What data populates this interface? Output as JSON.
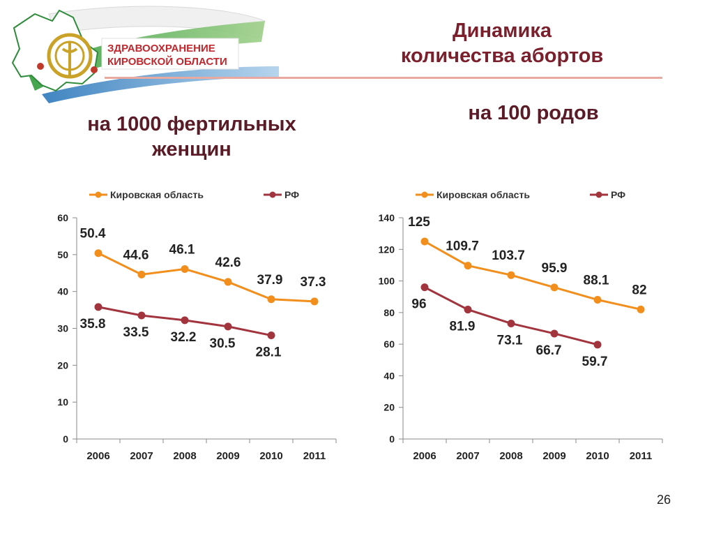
{
  "header": {
    "logo_line1": "ЗДРАВООХРАНЕНИЕ",
    "logo_line2": "КИРОВСКОЙ ОБЛАСТИ",
    "title_line1": "Динамика",
    "title_line2": "количества абортов"
  },
  "left_subtitle": {
    "line1": "на 1000 фертильных",
    "line2": "женщин"
  },
  "right_subtitle": "на 100 родов",
  "page_number": "26",
  "colors": {
    "kirov": "#f28e1c",
    "rf": "#a2343e",
    "title": "#7a1f2b"
  },
  "chart_data": [
    {
      "type": "line",
      "categories": [
        "2006",
        "2007",
        "2008",
        "2009",
        "2010",
        "2011"
      ],
      "ylim": [
        0,
        60
      ],
      "yticks": [
        0,
        10,
        20,
        30,
        40,
        50,
        60
      ],
      "legend": "top",
      "series": [
        {
          "name": "Кировская область",
          "values": [
            50.4,
            44.6,
            46.1,
            42.6,
            37.9,
            37.3
          ],
          "labels": [
            "50.4",
            "44.6",
            "46.1",
            "42.6",
            "37.9",
            "37.3"
          ]
        },
        {
          "name": "РФ",
          "values": [
            35.8,
            33.5,
            32.2,
            30.5,
            28.1,
            null
          ],
          "labels": [
            "35.8",
            "33.5",
            "32.2",
            "30.5",
            "28.1",
            ""
          ]
        }
      ]
    },
    {
      "type": "line",
      "categories": [
        "2006",
        "2007",
        "2008",
        "2009",
        "2010",
        "2011"
      ],
      "ylim": [
        0,
        140
      ],
      "yticks": [
        0,
        20,
        40,
        60,
        80,
        100,
        120,
        140
      ],
      "legend": "top",
      "series": [
        {
          "name": "Кировская область",
          "values": [
            125,
            109.7,
            103.7,
            95.9,
            88.1,
            82
          ],
          "labels": [
            "125",
            "109.7",
            "103.7",
            "95.9",
            "88.1",
            "82"
          ]
        },
        {
          "name": "РФ",
          "values": [
            96,
            81.9,
            73.1,
            66.7,
            59.7,
            null
          ],
          "labels": [
            "96",
            "81.9",
            "73.1",
            "66.7",
            "59.7",
            ""
          ]
        }
      ]
    }
  ]
}
